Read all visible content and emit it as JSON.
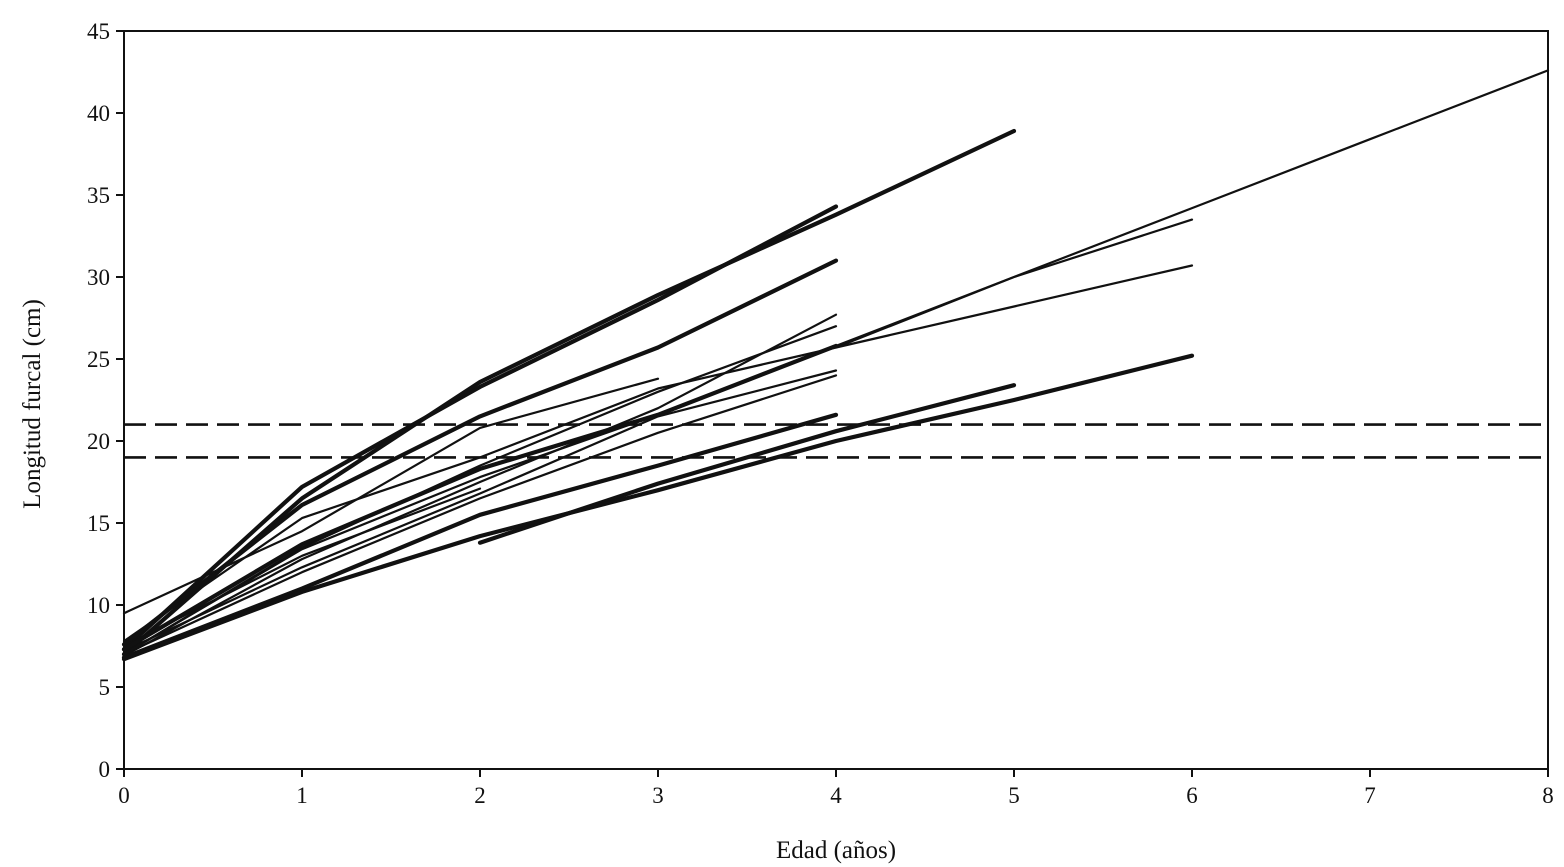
{
  "chart_data": {
    "type": "line",
    "title": "",
    "xlabel": "Edad (años)",
    "ylabel": "Longitud furcal (cm)",
    "xlim": [
      0,
      8
    ],
    "ylim": [
      0,
      45
    ],
    "x_ticks": [
      0,
      1,
      2,
      3,
      4,
      5,
      6,
      7,
      8
    ],
    "y_ticks": [
      0,
      5,
      10,
      15,
      20,
      25,
      30,
      35,
      40,
      45
    ],
    "grid": false,
    "legend": "none",
    "reference_lines": [
      {
        "y": 21,
        "style": "dashed"
      },
      {
        "y": 19,
        "style": "dashed"
      }
    ],
    "series": [
      {
        "width": "thick",
        "points": [
          [
            0,
            7.3
          ],
          [
            1,
            17.2
          ],
          [
            2,
            23.3
          ],
          [
            3,
            28.6
          ],
          [
            4,
            34.3
          ]
        ]
      },
      {
        "width": "thick",
        "points": [
          [
            0,
            7.0
          ],
          [
            1,
            16.5
          ],
          [
            2,
            23.6
          ],
          [
            3,
            28.9
          ],
          [
            4,
            33.8
          ],
          [
            5,
            38.9
          ]
        ]
      },
      {
        "width": "thick",
        "points": [
          [
            0,
            7.6
          ],
          [
            1,
            16.1
          ],
          [
            2,
            21.5
          ],
          [
            3,
            25.7
          ],
          [
            4,
            31.0
          ]
        ]
      },
      {
        "width": "thin",
        "points": [
          [
            0,
            7.8
          ],
          [
            1,
            15.3
          ],
          [
            2,
            19.0
          ],
          [
            3,
            23.2
          ],
          [
            4,
            25.7
          ],
          [
            5,
            30.0
          ],
          [
            6,
            33.5
          ]
        ]
      },
      {
        "width": "thin",
        "points": [
          [
            0,
            7.0
          ],
          [
            1,
            13.5
          ],
          [
            2,
            18.5
          ],
          [
            3,
            23.0
          ],
          [
            4,
            27.0
          ]
        ]
      },
      {
        "width": "thin",
        "points": [
          [
            0,
            6.9
          ],
          [
            1,
            12.8
          ],
          [
            2,
            17.5
          ],
          [
            3,
            22.0
          ],
          [
            4,
            27.7
          ]
        ]
      },
      {
        "width": "thin",
        "points": [
          [
            0,
            9.5
          ],
          [
            1,
            14.5
          ],
          [
            2,
            20.8
          ],
          [
            3,
            23.8
          ]
        ]
      },
      {
        "width": "thin",
        "points": [
          [
            0,
            7.5
          ],
          [
            1,
            13.0
          ],
          [
            2,
            17.1
          ]
        ]
      },
      {
        "width": "thin",
        "points": [
          [
            0,
            7.2
          ],
          [
            1,
            12.3
          ],
          [
            2,
            16.8
          ],
          [
            3,
            21.5
          ],
          [
            4,
            24.3
          ]
        ]
      },
      {
        "width": "thin",
        "points": [
          [
            0,
            7.0
          ],
          [
            1,
            12.0
          ],
          [
            2,
            16.5
          ],
          [
            3,
            20.5
          ],
          [
            4,
            24.0
          ]
        ]
      },
      {
        "width": "thin",
        "points": [
          [
            4,
            25.7
          ],
          [
            5,
            28.2
          ],
          [
            6,
            30.7
          ]
        ]
      },
      {
        "width": "thin",
        "points": [
          [
            0,
            7.0
          ],
          [
            1,
            13.4
          ],
          [
            2,
            17.8
          ],
          [
            3,
            21.6
          ],
          [
            4,
            25.8
          ],
          [
            5,
            30.0
          ],
          [
            6,
            34.2
          ],
          [
            7,
            38.4
          ],
          [
            8,
            42.6
          ]
        ]
      },
      {
        "width": "thick",
        "points": [
          [
            0,
            7.3
          ],
          [
            1,
            13.7
          ],
          [
            2,
            18.3
          ],
          [
            3,
            21.6
          ],
          [
            4,
            25.8
          ]
        ]
      },
      {
        "width": "thick",
        "points": [
          [
            0,
            6.8
          ],
          [
            1,
            11.0
          ],
          [
            2,
            15.5
          ],
          [
            3,
            18.5
          ],
          [
            4,
            21.6
          ]
        ]
      },
      {
        "width": "thick",
        "points": [
          [
            2,
            13.8
          ],
          [
            3,
            17.4
          ],
          [
            4,
            20.6
          ],
          [
            5,
            23.4
          ]
        ]
      },
      {
        "width": "thick",
        "points": [
          [
            0,
            6.7
          ],
          [
            1,
            10.8
          ],
          [
            2,
            14.2
          ],
          [
            3,
            17.0
          ],
          [
            4,
            20.0
          ],
          [
            5,
            22.5
          ],
          [
            6,
            25.2
          ]
        ]
      }
    ]
  }
}
